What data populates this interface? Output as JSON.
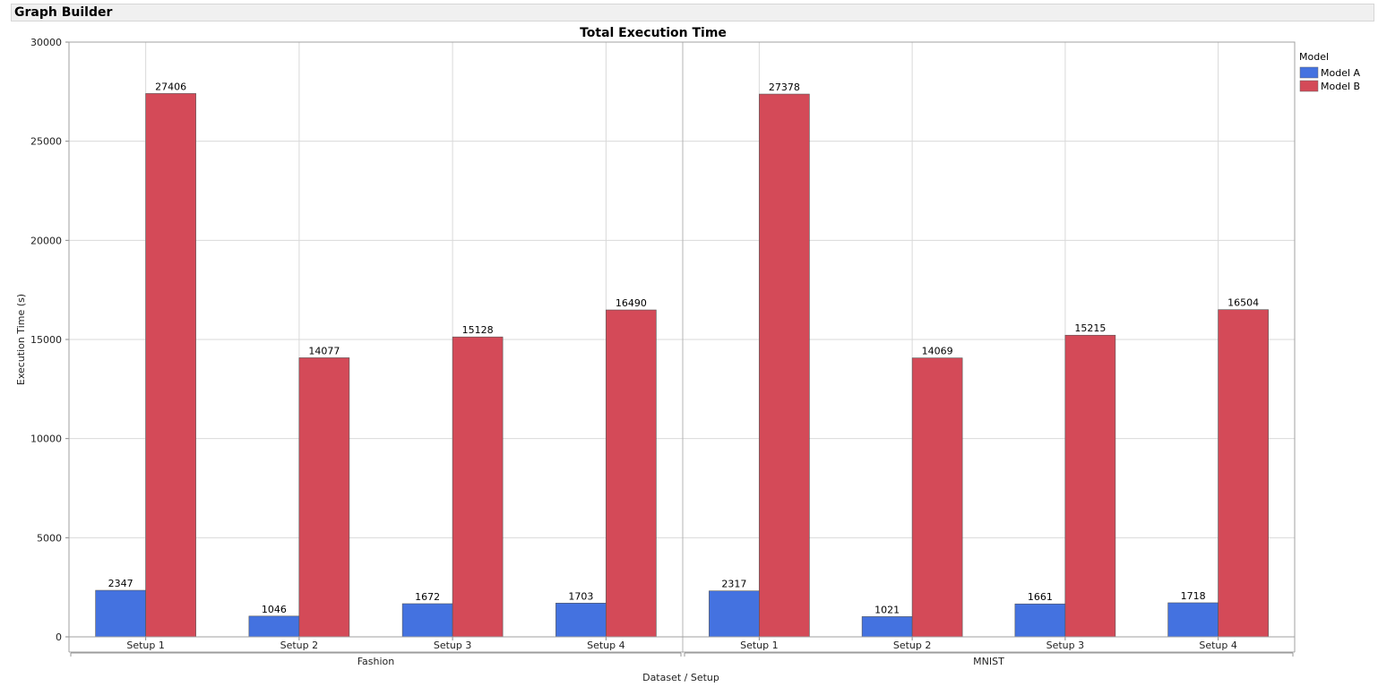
{
  "window": {
    "title": "Graph Builder"
  },
  "chart_data": {
    "type": "bar",
    "title": "Total Execution Time",
    "xlabel": "Dataset / Setup",
    "ylabel": "Execution Time (s)",
    "ylim": [
      0,
      30000
    ],
    "yticks": [
      0,
      5000,
      10000,
      15000,
      20000,
      25000,
      30000
    ],
    "grid": true,
    "legend": {
      "title": "Model",
      "placement": "right"
    },
    "groups": [
      {
        "label": "Fashion",
        "categories": [
          "Setup 1",
          "Setup 2",
          "Setup 3",
          "Setup 4"
        ]
      },
      {
        "label": "MNIST",
        "categories": [
          "Setup 1",
          "Setup 2",
          "Setup 3",
          "Setup 4"
        ]
      }
    ],
    "series": [
      {
        "name": "Model A",
        "color": "#4472e0",
        "values": [
          2347,
          1046,
          1672,
          1703,
          2317,
          1021,
          1661,
          1718
        ]
      },
      {
        "name": "Model B",
        "color": "#d44a58",
        "values": [
          27406,
          14077,
          15128,
          16490,
          27378,
          14069,
          15215,
          16504
        ]
      }
    ]
  }
}
